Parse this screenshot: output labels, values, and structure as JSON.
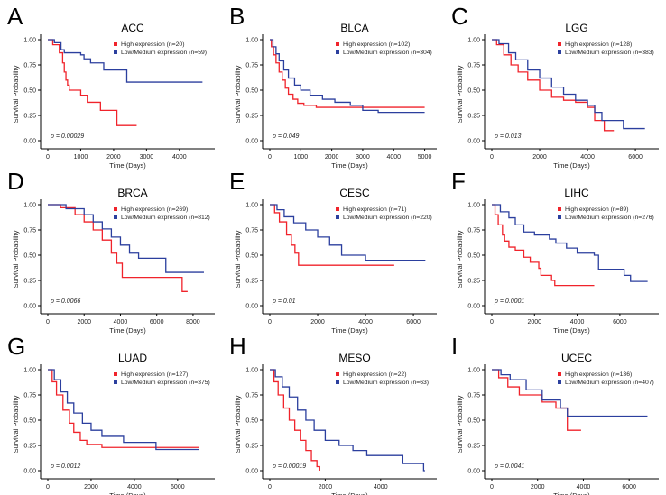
{
  "colors": {
    "high": "#f0232b",
    "low": "#2b3f9e"
  },
  "chart_data": [
    {
      "panel": "A",
      "type": "line",
      "title": "ACC",
      "xlabel": "Time (Days)",
      "ylabel": "Survival Probability",
      "xlim": [
        0,
        4800
      ],
      "xticks": [
        0,
        1000,
        2000,
        3000,
        4000
      ],
      "ylim": [
        0,
        1
      ],
      "yticks": [
        "0.00",
        "0.25",
        "0.50",
        "0.75",
        "1.00"
      ],
      "p_value": "p = 0.00029",
      "series": [
        {
          "name": "High expression (n=20)",
          "end": 2700,
          "points": [
            [
              0,
              1
            ],
            [
              150,
              0.95
            ],
            [
              350,
              0.87
            ],
            [
              450,
              0.77
            ],
            [
              500,
              0.68
            ],
            [
              550,
              0.6
            ],
            [
              600,
              0.55
            ],
            [
              650,
              0.5
            ],
            [
              1000,
              0.45
            ],
            [
              1200,
              0.38
            ],
            [
              1600,
              0.3
            ],
            [
              2100,
              0.15
            ]
          ]
        },
        {
          "name": "Low/Medium expression (n=59)",
          "end": 4700,
          "points": [
            [
              0,
              1
            ],
            [
              200,
              0.97
            ],
            [
              400,
              0.9
            ],
            [
              500,
              0.87
            ],
            [
              1000,
              0.85
            ],
            [
              1100,
              0.81
            ],
            [
              1300,
              0.77
            ],
            [
              1700,
              0.7
            ],
            [
              2400,
              0.58
            ]
          ]
        }
      ]
    },
    {
      "panel": "B",
      "type": "line",
      "title": "BLCA",
      "xlabel": "Time (Days)",
      "ylabel": "Survival Probability",
      "xlim": [
        0,
        5100
      ],
      "xticks": [
        0,
        1000,
        2000,
        3000,
        4000,
        5000
      ],
      "ylim": [
        0,
        1
      ],
      "yticks": [
        "0.00",
        "0.25",
        "0.50",
        "0.75",
        "1.00"
      ],
      "p_value": "p = 0.049",
      "series": [
        {
          "name": "High expression (n=102)",
          "end": 5000,
          "points": [
            [
              0,
              1
            ],
            [
              50,
              0.93
            ],
            [
              120,
              0.85
            ],
            [
              200,
              0.77
            ],
            [
              300,
              0.68
            ],
            [
              400,
              0.6
            ],
            [
              500,
              0.52
            ],
            [
              600,
              0.46
            ],
            [
              750,
              0.41
            ],
            [
              900,
              0.37
            ],
            [
              1100,
              0.35
            ],
            [
              1500,
              0.33
            ]
          ]
        },
        {
          "name": "Low/Medium expression (n=304)",
          "end": 5000,
          "points": [
            [
              0,
              1
            ],
            [
              100,
              0.93
            ],
            [
              200,
              0.86
            ],
            [
              300,
              0.79
            ],
            [
              450,
              0.7
            ],
            [
              600,
              0.62
            ],
            [
              800,
              0.55
            ],
            [
              1000,
              0.5
            ],
            [
              1300,
              0.45
            ],
            [
              1700,
              0.41
            ],
            [
              2100,
              0.38
            ],
            [
              2600,
              0.35
            ],
            [
              3000,
              0.3
            ],
            [
              3500,
              0.28
            ]
          ]
        }
      ]
    },
    {
      "panel": "C",
      "type": "line",
      "title": "LGG",
      "xlabel": "Time (Days)",
      "ylabel": "Survival Probability",
      "xlim": [
        0,
        6600
      ],
      "xticks": [
        0,
        2000,
        4000,
        6000
      ],
      "ylim": [
        0,
        1
      ],
      "yticks": [
        "0.00",
        "0.25",
        "0.50",
        "0.75",
        "1.00"
      ],
      "p_value": "p = 0.013",
      "series": [
        {
          "name": "High expression (n=128)",
          "end": 5100,
          "points": [
            [
              0,
              1
            ],
            [
              200,
              0.95
            ],
            [
              500,
              0.85
            ],
            [
              800,
              0.75
            ],
            [
              1100,
              0.68
            ],
            [
              1500,
              0.6
            ],
            [
              2000,
              0.5
            ],
            [
              2500,
              0.43
            ],
            [
              3000,
              0.4
            ],
            [
              3500,
              0.38
            ],
            [
              4000,
              0.33
            ],
            [
              4300,
              0.2
            ],
            [
              4700,
              0.1
            ]
          ]
        },
        {
          "name": "Low/Medium expression (n=383)",
          "end": 6400,
          "points": [
            [
              0,
              1
            ],
            [
              300,
              0.96
            ],
            [
              700,
              0.87
            ],
            [
              1000,
              0.8
            ],
            [
              1500,
              0.7
            ],
            [
              2000,
              0.62
            ],
            [
              2500,
              0.53
            ],
            [
              3000,
              0.46
            ],
            [
              3500,
              0.4
            ],
            [
              4000,
              0.35
            ],
            [
              4300,
              0.28
            ],
            [
              4600,
              0.2
            ],
            [
              5500,
              0.12
            ]
          ]
        }
      ]
    },
    {
      "panel": "D",
      "type": "line",
      "title": "BRCA",
      "xlabel": "Time (Days)",
      "ylabel": "Survival Probability",
      "xlim": [
        0,
        8700
      ],
      "xticks": [
        0,
        2000,
        4000,
        6000,
        8000
      ],
      "ylim": [
        0,
        1
      ],
      "yticks": [
        "0.00",
        "0.25",
        "0.50",
        "0.75",
        "1.00"
      ],
      "p_value": "p = 0.0066",
      "series": [
        {
          "name": "High expression (n=269)",
          "end": 7700,
          "points": [
            [
              0,
              1
            ],
            [
              700,
              0.97
            ],
            [
              1500,
              0.9
            ],
            [
              2000,
              0.83
            ],
            [
              2500,
              0.75
            ],
            [
              3000,
              0.65
            ],
            [
              3500,
              0.52
            ],
            [
              3800,
              0.42
            ],
            [
              4100,
              0.28
            ],
            [
              7400,
              0.14
            ]
          ]
        },
        {
          "name": "Low/Medium expression (n=812)",
          "end": 8600,
          "points": [
            [
              0,
              1
            ],
            [
              1000,
              0.96
            ],
            [
              2000,
              0.9
            ],
            [
              2500,
              0.83
            ],
            [
              3000,
              0.76
            ],
            [
              3500,
              0.68
            ],
            [
              4000,
              0.6
            ],
            [
              4500,
              0.52
            ],
            [
              5000,
              0.47
            ],
            [
              6500,
              0.33
            ]
          ]
        }
      ]
    },
    {
      "panel": "E",
      "type": "line",
      "title": "CESC",
      "xlabel": "Time (Days)",
      "ylabel": "Survival Probability",
      "xlim": [
        0,
        6600
      ],
      "xticks": [
        0,
        2000,
        4000,
        6000
      ],
      "ylim": [
        0,
        1
      ],
      "yticks": [
        "0.00",
        "0.25",
        "0.50",
        "0.75",
        "1.00"
      ],
      "p_value": "p = 0.01",
      "series": [
        {
          "name": "High expression (n=71)",
          "end": 5200,
          "points": [
            [
              0,
              1
            ],
            [
              200,
              0.92
            ],
            [
              400,
              0.83
            ],
            [
              700,
              0.7
            ],
            [
              900,
              0.6
            ],
            [
              1050,
              0.52
            ],
            [
              1200,
              0.4
            ]
          ]
        },
        {
          "name": "Low/Medium expression (n=220)",
          "end": 6500,
          "points": [
            [
              0,
              1
            ],
            [
              300,
              0.95
            ],
            [
              600,
              0.88
            ],
            [
              1000,
              0.82
            ],
            [
              1500,
              0.75
            ],
            [
              2000,
              0.68
            ],
            [
              2500,
              0.6
            ],
            [
              3000,
              0.5
            ],
            [
              4000,
              0.45
            ]
          ]
        }
      ]
    },
    {
      "panel": "F",
      "type": "line",
      "title": "LIHC",
      "xlabel": "Time (Days)",
      "ylabel": "Survival Probability",
      "xlim": [
        0,
        7400
      ],
      "xticks": [
        0,
        2000,
        4000,
        6000
      ],
      "ylim": [
        0,
        1
      ],
      "yticks": [
        "0.00",
        "0.25",
        "0.50",
        "0.75",
        "1.00"
      ],
      "p_value": "p = 0.0001",
      "series": [
        {
          "name": "High expression (n=89)",
          "end": 4800,
          "points": [
            [
              0,
              1
            ],
            [
              150,
              0.9
            ],
            [
              300,
              0.8
            ],
            [
              500,
              0.7
            ],
            [
              600,
              0.64
            ],
            [
              800,
              0.58
            ],
            [
              1100,
              0.55
            ],
            [
              1500,
              0.48
            ],
            [
              1800,
              0.43
            ],
            [
              2200,
              0.37
            ],
            [
              2300,
              0.3
            ],
            [
              2800,
              0.25
            ],
            [
              2950,
              0.2
            ]
          ]
        },
        {
          "name": "Low/Medium expression (n=276)",
          "end": 7300,
          "points": [
            [
              0,
              1
            ],
            [
              400,
              0.93
            ],
            [
              800,
              0.87
            ],
            [
              1100,
              0.8
            ],
            [
              1500,
              0.73
            ],
            [
              2000,
              0.7
            ],
            [
              2700,
              0.66
            ],
            [
              3000,
              0.62
            ],
            [
              3500,
              0.57
            ],
            [
              4000,
              0.52
            ],
            [
              4800,
              0.5
            ],
            [
              5000,
              0.36
            ],
            [
              6200,
              0.3
            ],
            [
              6500,
              0.24
            ]
          ]
        }
      ]
    },
    {
      "panel": "G",
      "type": "line",
      "title": "LUAD",
      "xlabel": "Time (Days)",
      "ylabel": "Survival Probability",
      "xlim": [
        0,
        7300
      ],
      "xticks": [
        0,
        2000,
        4000,
        6000
      ],
      "ylim": [
        0,
        1
      ],
      "yticks": [
        "0.00",
        "0.25",
        "0.50",
        "0.75",
        "1.00"
      ],
      "p_value": "p = 0.0012",
      "series": [
        {
          "name": "High expression (n=127)",
          "end": 7000,
          "points": [
            [
              0,
              1
            ],
            [
              200,
              0.88
            ],
            [
              400,
              0.75
            ],
            [
              700,
              0.6
            ],
            [
              1000,
              0.47
            ],
            [
              1200,
              0.38
            ],
            [
              1500,
              0.3
            ],
            [
              1800,
              0.26
            ],
            [
              2500,
              0.23
            ]
          ]
        },
        {
          "name": "Low/Medium expression (n=375)",
          "end": 7000,
          "points": [
            [
              0,
              1
            ],
            [
              300,
              0.9
            ],
            [
              600,
              0.78
            ],
            [
              900,
              0.67
            ],
            [
              1200,
              0.57
            ],
            [
              1600,
              0.47
            ],
            [
              2000,
              0.4
            ],
            [
              2500,
              0.34
            ],
            [
              3500,
              0.28
            ],
            [
              5000,
              0.21
            ]
          ]
        }
      ]
    },
    {
      "panel": "H",
      "type": "line",
      "title": "MESO",
      "xlabel": "Time (Days)",
      "ylabel": "Survival Probability",
      "xlim": [
        0,
        5700
      ],
      "xticks": [
        0,
        2000,
        4000
      ],
      "ylim": [
        0,
        1
      ],
      "yticks": [
        "0.00",
        "0.25",
        "0.50",
        "0.75",
        "1.00"
      ],
      "p_value": "p = 0.00019",
      "series": [
        {
          "name": "High expression (n=22)",
          "end": 1800,
          "points": [
            [
              0,
              1
            ],
            [
              150,
              0.88
            ],
            [
              300,
              0.75
            ],
            [
              500,
              0.62
            ],
            [
              700,
              0.5
            ],
            [
              900,
              0.4
            ],
            [
              1100,
              0.3
            ],
            [
              1300,
              0.2
            ],
            [
              1500,
              0.1
            ],
            [
              1700,
              0.04
            ],
            [
              1800,
              0
            ]
          ]
        },
        {
          "name": "Low/Medium expression (n=63)",
          "end": 5600,
          "points": [
            [
              0,
              1
            ],
            [
              200,
              0.93
            ],
            [
              450,
              0.83
            ],
            [
              700,
              0.73
            ],
            [
              1000,
              0.6
            ],
            [
              1300,
              0.5
            ],
            [
              1600,
              0.4
            ],
            [
              2000,
              0.3
            ],
            [
              2500,
              0.25
            ],
            [
              3000,
              0.2
            ],
            [
              3500,
              0.15
            ],
            [
              4800,
              0.07
            ],
            [
              5550,
              0
            ]
          ]
        }
      ]
    },
    {
      "panel": "I",
      "type": "line",
      "title": "UCEC",
      "xlabel": "Time (Days)",
      "ylabel": "Survival Probability",
      "xlim": [
        0,
        6900
      ],
      "xticks": [
        0,
        2000,
        4000,
        6000
      ],
      "ylim": [
        0,
        1
      ],
      "yticks": [
        "0.00",
        "0.25",
        "0.50",
        "0.75",
        "1.00"
      ],
      "p_value": "p = 0.0041",
      "series": [
        {
          "name": "High expression (n=136)",
          "end": 3900,
          "points": [
            [
              0,
              1
            ],
            [
              300,
              0.92
            ],
            [
              700,
              0.83
            ],
            [
              1200,
              0.75
            ],
            [
              2200,
              0.68
            ],
            [
              2800,
              0.62
            ],
            [
              3300,
              0.4
            ]
          ]
        },
        {
          "name": "Low/Medium expression (n=407)",
          "end": 6800,
          "points": [
            [
              0,
              1
            ],
            [
              400,
              0.95
            ],
            [
              800,
              0.9
            ],
            [
              1500,
              0.8
            ],
            [
              2200,
              0.7
            ],
            [
              3000,
              0.62
            ],
            [
              3300,
              0.54
            ]
          ]
        }
      ]
    }
  ]
}
